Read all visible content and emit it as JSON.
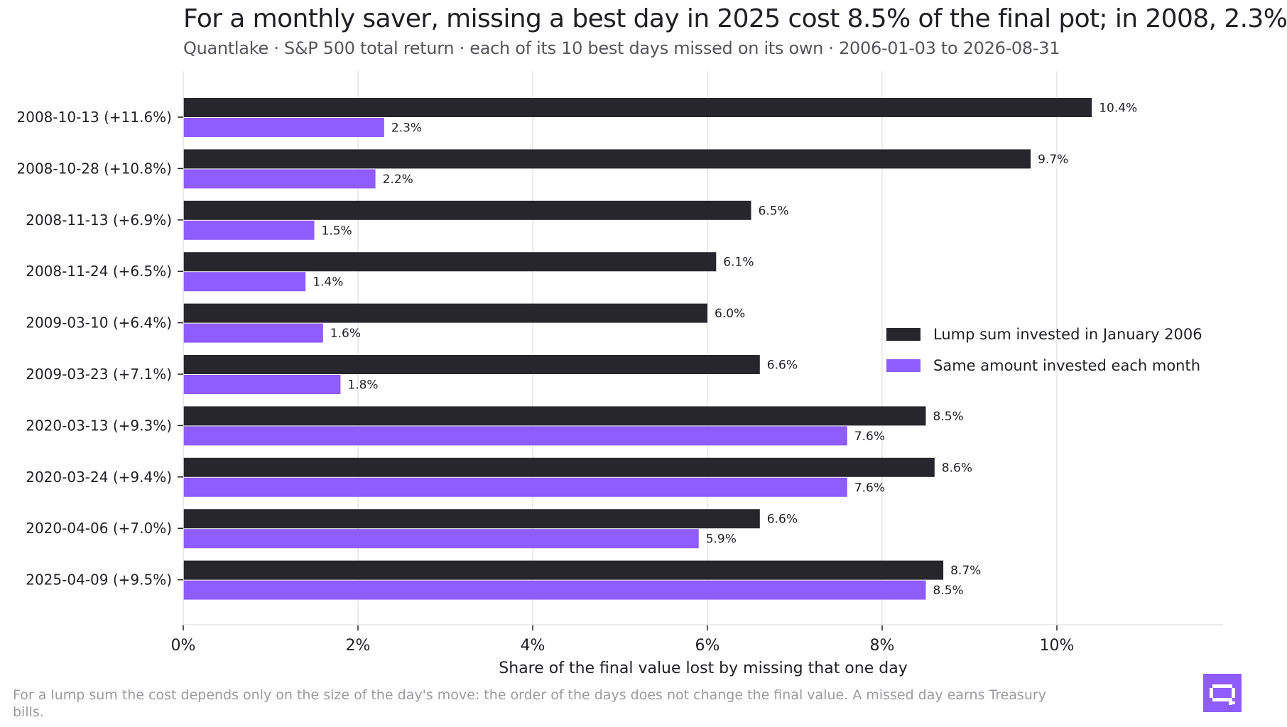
{
  "title": "For a monthly saver, missing a best day in 2025 cost 8.5% of the final pot; in 2008, 2.3%",
  "subtitle": "Quantlake · S&P 500 total return · each of its 10 best days missed on its own · 2006-01-03 to 2026-08-31",
  "footnote": "For a lump sum the cost depends only on the size of the day's move: the order of the days does not change the final value. A missed day earns Treasury bills.",
  "logo_icon": "quantlake-logo-icon",
  "colors": {
    "lump": "#28262d",
    "monthly": "#8f5cff",
    "grid": "#e6e6e8",
    "axis": "#1f1f24"
  },
  "chart_data": {
    "type": "bar",
    "orientation": "horizontal",
    "categories": [
      "2008-10-13  (+11.6%)",
      "2008-10-28  (+10.8%)",
      "2008-11-13  (+6.9%)",
      "2008-11-24  (+6.5%)",
      "2009-03-10  (+6.4%)",
      "2009-03-23  (+7.1%)",
      "2020-03-13  (+9.3%)",
      "2020-03-24  (+9.4%)",
      "2020-04-06  (+7.0%)",
      "2025-04-09  (+9.5%)"
    ],
    "series": [
      {
        "name": "Lump sum invested in January 2006",
        "values": [
          10.4,
          9.7,
          6.5,
          6.1,
          6.0,
          6.6,
          8.5,
          8.6,
          6.6,
          8.7
        ],
        "labels": [
          "10.4%",
          "9.7%",
          "6.5%",
          "6.1%",
          "6.0%",
          "6.6%",
          "8.5%",
          "8.6%",
          "6.6%",
          "8.7%"
        ]
      },
      {
        "name": "Same amount invested each month",
        "values": [
          2.3,
          2.2,
          1.5,
          1.4,
          1.6,
          1.8,
          7.6,
          7.6,
          5.9,
          8.5
        ],
        "labels": [
          "2.3%",
          "2.2%",
          "1.5%",
          "1.4%",
          "1.6%",
          "1.8%",
          "7.6%",
          "7.6%",
          "5.9%",
          "8.5%"
        ]
      }
    ],
    "xlabel": "Share of the final value lost by missing that one day",
    "ylabel": "",
    "xlim": [
      0,
      11.9
    ],
    "xticks": [
      0,
      2,
      4,
      6,
      8,
      10
    ],
    "xtick_labels": [
      "0%",
      "2%",
      "4%",
      "6%",
      "8%",
      "10%"
    ],
    "grid": "vertical",
    "legend": "center-right"
  }
}
